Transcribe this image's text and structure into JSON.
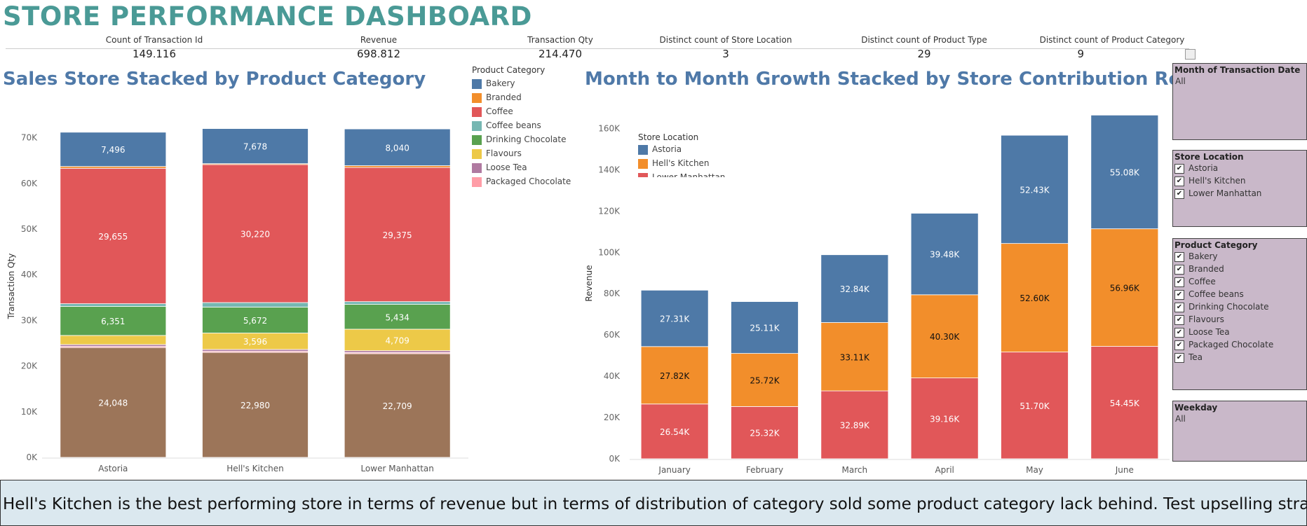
{
  "title": "STORE PERFORMANCE DASHBOARD",
  "kpis": [
    {
      "label": "Count of Transaction Id",
      "value": "149,116"
    },
    {
      "label": "Revenue",
      "value": "698,812"
    },
    {
      "label": "Transaction Qty",
      "value": "214,470"
    },
    {
      "label": "Distinct count of Store Location",
      "value": "3"
    },
    {
      "label": "Distinct count of Product Type",
      "value": "29"
    },
    {
      "label": "Distinct count of Product Category",
      "value": "9"
    }
  ],
  "charts": {
    "left_title": "Sales Store Stacked by Product Category",
    "right_title": "Month to Month Growth Stacked by Store Contribution Revenue"
  },
  "legend_product": {
    "title": "Product Category",
    "items": [
      {
        "label": "Bakery",
        "color": "#4e79a7"
      },
      {
        "label": "Branded",
        "color": "#f28e2b"
      },
      {
        "label": "Coffee",
        "color": "#e15759"
      },
      {
        "label": "Coffee beans",
        "color": "#76b7b2"
      },
      {
        "label": "Drinking Chocolate",
        "color": "#59a14f"
      },
      {
        "label": "Flavours",
        "color": "#edc948"
      },
      {
        "label": "Loose Tea",
        "color": "#b07aa1"
      },
      {
        "label": "Packaged Chocolate",
        "color": "#ff9da7"
      }
    ]
  },
  "legend_store": {
    "title": "Store Location",
    "items": [
      {
        "label": "Astoria",
        "color": "#4e79a7"
      },
      {
        "label": "Hell's Kitchen",
        "color": "#f28e2b"
      },
      {
        "label": "Lower Manhattan",
        "color": "#e15759"
      }
    ]
  },
  "filters": {
    "month": {
      "title": "Month of Transaction Date",
      "value": "All"
    },
    "store": {
      "title": "Store Location",
      "options": [
        "Astoria",
        "Hell's Kitchen",
        "Lower Manhattan"
      ]
    },
    "category": {
      "title": "Product Category",
      "options": [
        "Bakery",
        "Branded",
        "Coffee",
        "Coffee beans",
        "Drinking Chocolate",
        "Flavours",
        "Loose Tea",
        "Packaged Chocolate",
        "Tea"
      ]
    },
    "weekday": {
      "title": "Weekday",
      "value": "All"
    }
  },
  "footer": {
    "text": "Hell's Kitchen is the best performing store in terms of revenue but in terms of distribution of category sold some product category lack behind. Test upselling strat.."
  },
  "chart_data": [
    {
      "type": "bar",
      "stacked": true,
      "title": "Sales Store Stacked by Product Category",
      "xlabel": "",
      "ylabel": "Transaction Qty",
      "ylim": [
        0,
        75000
      ],
      "yticks": [
        "0K",
        "10K",
        "20K",
        "30K",
        "40K",
        "50K",
        "60K",
        "70K"
      ],
      "categories": [
        "Astoria",
        "Hell's Kitchen",
        "Lower Manhattan"
      ],
      "series": [
        {
          "name": "Tea",
          "color": "#9c7559",
          "values": [
            24048,
            22980,
            22709
          ],
          "labels": [
            "24,048",
            "22,980",
            "22,709"
          ]
        },
        {
          "name": "Packaged Chocolate",
          "color": "#ff9da7",
          "values": [
            250,
            250,
            250
          ],
          "labels": [
            "",
            "",
            ""
          ]
        },
        {
          "name": "Loose Tea",
          "color": "#b07aa1",
          "values": [
            400,
            400,
            400
          ],
          "labels": [
            "",
            "",
            ""
          ]
        },
        {
          "name": "Flavours",
          "color": "#edc948",
          "values": [
            2000,
            3596,
            4709
          ],
          "labels": [
            "",
            "3,596",
            "4,709"
          ]
        },
        {
          "name": "Drinking Chocolate",
          "color": "#59a14f",
          "values": [
            6351,
            5672,
            5434
          ],
          "labels": [
            "6,351",
            "5,672",
            "5,434"
          ]
        },
        {
          "name": "Coffee beans",
          "color": "#76b7b2",
          "values": [
            600,
            1000,
            600
          ],
          "labels": [
            "",
            "",
            ""
          ]
        },
        {
          "name": "Coffee",
          "color": "#e15759",
          "values": [
            29655,
            30220,
            29375
          ],
          "labels": [
            "29,655",
            "30,220",
            "29,375"
          ]
        },
        {
          "name": "Branded",
          "color": "#f28e2b",
          "values": [
            400,
            200,
            400
          ],
          "labels": [
            "",
            "",
            ""
          ]
        },
        {
          "name": "Bakery",
          "color": "#4e79a7",
          "values": [
            7496,
            7678,
            8040
          ],
          "labels": [
            "7,496",
            "7,678",
            "8,040"
          ]
        }
      ],
      "grid": false
    },
    {
      "type": "bar",
      "stacked": true,
      "title": "Month to Month Growth Stacked by Store Contribution Revenue",
      "xlabel": "",
      "ylabel": "Revenue",
      "ylim": [
        0,
        170000
      ],
      "yticks": [
        "0K",
        "20K",
        "40K",
        "60K",
        "80K",
        "100K",
        "120K",
        "140K",
        "160K"
      ],
      "categories": [
        "January",
        "February",
        "March",
        "April",
        "May",
        "June"
      ],
      "series": [
        {
          "name": "Lower Manhattan",
          "color": "#e15759",
          "values": [
            26540,
            25320,
            32890,
            39160,
            51700,
            54450
          ],
          "labels": [
            "26.54K",
            "25.32K",
            "32.89K",
            "39.16K",
            "51.70K",
            "54.45K"
          ],
          "text_color": "#ffffff"
        },
        {
          "name": "Hell's Kitchen",
          "color": "#f28e2b",
          "values": [
            27820,
            25720,
            33110,
            40300,
            52600,
            56960
          ],
          "labels": [
            "27.82K",
            "25.72K",
            "33.11K",
            "40.30K",
            "52.60K",
            "56.96K"
          ],
          "text_color": "#111111"
        },
        {
          "name": "Astoria",
          "color": "#4e79a7",
          "values": [
            27310,
            25110,
            32840,
            39480,
            52430,
            55080
          ],
          "labels": [
            "27.31K",
            "25.11K",
            "32.84K",
            "39.48K",
            "52.43K",
            "55.08K"
          ],
          "text_color": "#ffffff"
        }
      ],
      "legend": "top-left",
      "grid": false
    }
  ]
}
